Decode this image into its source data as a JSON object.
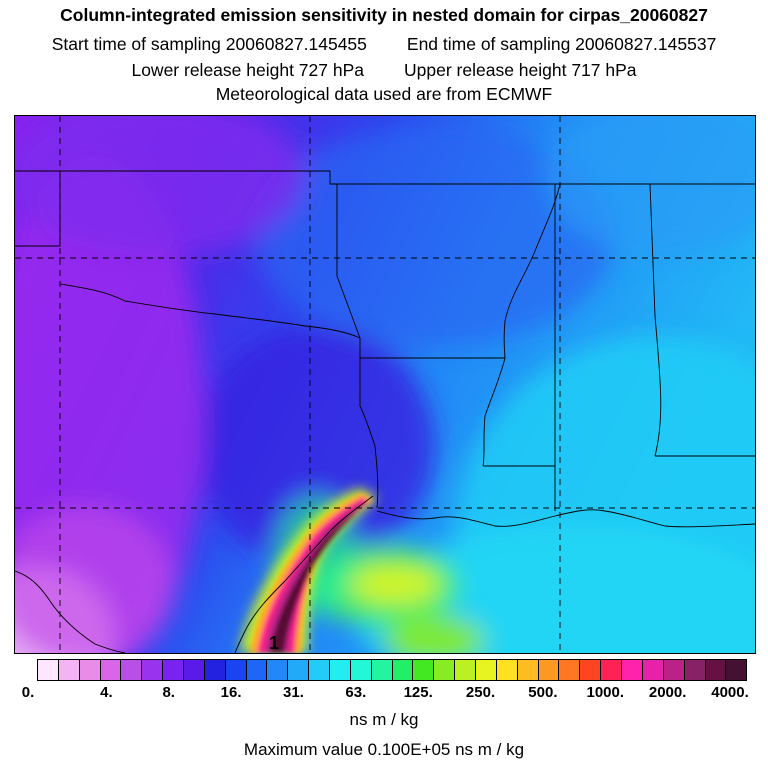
{
  "title": {
    "line1": "Column-integrated emission sensitivity in nested domain for cirpas_20060827",
    "start_label": "Start time of sampling 20060827.145455",
    "end_label": "End time of sampling 20060827.145537",
    "lower_label": "Lower release height  727 hPa",
    "upper_label": "Upper release height  717 hPa",
    "met_label": "Meteorological data used are from ECMWF"
  },
  "map": {
    "release_marker": "1"
  },
  "colorbar": {
    "ticks": [
      "0.",
      "4.",
      "8.",
      "16.",
      "31.",
      "63.",
      "125.",
      "250.",
      "500.",
      "1000.",
      "2000.",
      "4000."
    ],
    "colors": [
      "#ffe6ff",
      "#f4b4f4",
      "#e88ce8",
      "#d966e8",
      "#b84fe6",
      "#9933ee",
      "#7a22f0",
      "#5a1ae8",
      "#2222e0",
      "#1a44f0",
      "#1e66f6",
      "#2288f8",
      "#22aaf8",
      "#22ccf6",
      "#22eef2",
      "#22f8d8",
      "#22f4a0",
      "#22ee66",
      "#44e822",
      "#88ec22",
      "#bbf022",
      "#e8f422",
      "#ffe022",
      "#ffbb22",
      "#ff9922",
      "#ff7722",
      "#ff4422",
      "#ff2255",
      "#ff22aa",
      "#e622aa",
      "#bb2288",
      "#882266",
      "#661144",
      "#441133"
    ],
    "units": "ns m / kg"
  },
  "footer": {
    "max_value": "Maximum value  0.100E+05 ns m / kg"
  }
}
